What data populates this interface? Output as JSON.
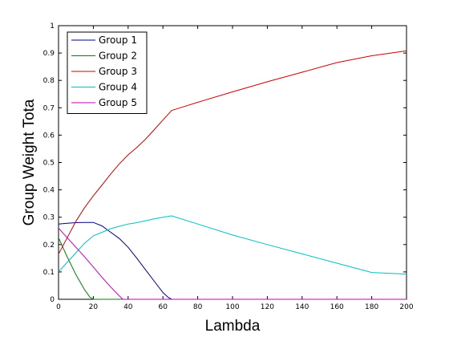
{
  "chart_data": {
    "type": "line",
    "title": "",
    "xlabel": "Lambda",
    "ylabel": "Group Weight Tota",
    "xlim": [
      0,
      200
    ],
    "ylim": [
      0,
      1
    ],
    "xticks": [
      0,
      20,
      40,
      60,
      80,
      100,
      120,
      140,
      160,
      180,
      200
    ],
    "yticks": [
      0,
      0.1,
      0.2,
      0.3,
      0.4,
      0.5,
      0.6,
      0.7,
      0.8,
      0.9,
      1
    ],
    "grid": false,
    "legend_position": "top-left",
    "series": [
      {
        "name": "Group 1",
        "color": "#00007f",
        "x": [
          0,
          5,
          10,
          15,
          20,
          25,
          30,
          35,
          40,
          45,
          50,
          55,
          60,
          63,
          65,
          70,
          100,
          150,
          200
        ],
        "y": [
          0.275,
          0.278,
          0.28,
          0.281,
          0.281,
          0.268,
          0.245,
          0.222,
          0.19,
          0.15,
          0.108,
          0.066,
          0.025,
          0.007,
          0,
          0,
          0,
          0,
          0
        ]
      },
      {
        "name": "Group 2",
        "color": "#007f00",
        "x": [
          0,
          5,
          10,
          15,
          18,
          20,
          30,
          100,
          200
        ],
        "y": [
          0.225,
          0.155,
          0.09,
          0.035,
          0.008,
          0,
          0,
          0,
          0
        ]
      },
      {
        "name": "Group 3",
        "color": "#cc0000",
        "x": [
          0,
          5,
          10,
          15,
          20,
          25,
          30,
          35,
          40,
          45,
          50,
          55,
          60,
          65,
          70,
          80,
          100,
          120,
          140,
          160,
          180,
          200
        ],
        "y": [
          0.165,
          0.225,
          0.285,
          0.335,
          0.378,
          0.418,
          0.458,
          0.495,
          0.528,
          0.555,
          0.585,
          0.62,
          0.655,
          0.69,
          0.7,
          0.72,
          0.758,
          0.795,
          0.83,
          0.865,
          0.89,
          0.908
        ]
      },
      {
        "name": "Group 4",
        "color": "#00bfbf",
        "x": [
          0,
          5,
          10,
          15,
          20,
          25,
          30,
          35,
          40,
          45,
          50,
          55,
          60,
          65,
          80,
          100,
          120,
          140,
          160,
          180,
          200
        ],
        "y": [
          0.1,
          0.135,
          0.17,
          0.205,
          0.232,
          0.245,
          0.258,
          0.267,
          0.275,
          0.28,
          0.287,
          0.294,
          0.3,
          0.305,
          0.275,
          0.235,
          0.2,
          0.166,
          0.132,
          0.098,
          0.092
        ]
      },
      {
        "name": "Group 5",
        "color": "#bf00bf",
        "x": [
          0,
          5,
          10,
          15,
          20,
          25,
          30,
          35,
          37,
          40,
          100,
          200
        ],
        "y": [
          0.26,
          0.225,
          0.19,
          0.155,
          0.118,
          0.08,
          0.045,
          0.012,
          0,
          0,
          0,
          0
        ]
      }
    ]
  }
}
